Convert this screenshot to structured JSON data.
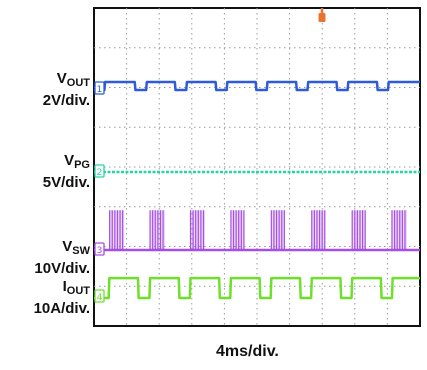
{
  "chart_data": {
    "type": "line",
    "title": "",
    "xlabel": "4ms/div.",
    "x_divisions": 10,
    "y_divisions": 8,
    "grid": true,
    "trigger_marker_color": "#e8742e",
    "series": [
      {
        "id": "vout",
        "label_main": "V",
        "label_sub": "OUT",
        "scale": "2V/div.",
        "marker": "1",
        "color": "#2f5bd9",
        "x": [
          0.0,
          0.32,
          0.34,
          1.25,
          1.27,
          1.6,
          1.62,
          2.48,
          2.5,
          2.83,
          2.85,
          3.73,
          3.75,
          4.07,
          4.09,
          4.96,
          4.98,
          5.3,
          5.32,
          6.2,
          6.22,
          6.55,
          6.57,
          7.44,
          7.46,
          7.78,
          7.8,
          8.68,
          8.7,
          9.02,
          9.04,
          10.0
        ],
        "y": [
          0.0,
          0.0,
          0.2,
          0.2,
          0.0,
          0.0,
          0.2,
          0.2,
          0.0,
          0.0,
          0.2,
          0.2,
          0.0,
          0.0,
          0.2,
          0.2,
          0.0,
          0.0,
          0.2,
          0.2,
          0.0,
          0.0,
          0.2,
          0.2,
          0.0,
          0.0,
          0.2,
          0.2,
          0.0,
          0.0,
          0.2,
          0.2
        ]
      },
      {
        "id": "vpg",
        "label_main": "V",
        "label_sub": "PG",
        "scale": "5V/div.",
        "marker": "2",
        "color": "#27d4a6",
        "x": [
          0,
          10
        ],
        "y": [
          0,
          0
        ]
      },
      {
        "id": "vsw",
        "label_main": "V",
        "label_sub": "SW",
        "scale": "10V/div.",
        "marker": "3",
        "color": "#a64fe3",
        "bursts": [
          [
            0.48,
            0.92
          ],
          [
            1.72,
            2.18
          ],
          [
            2.96,
            3.4
          ],
          [
            4.2,
            4.62
          ],
          [
            5.44,
            5.84
          ],
          [
            6.68,
            7.1
          ],
          [
            7.92,
            8.32
          ],
          [
            9.14,
            9.6
          ]
        ],
        "high": 1.0,
        "low": 0.0
      },
      {
        "id": "iout",
        "label_main": "I",
        "label_sub": "OUT",
        "scale": "10A/div.",
        "marker": "4",
        "color": "#6ee02c",
        "x": [
          0.0,
          0.45,
          0.47,
          1.35,
          1.37,
          1.7,
          1.72,
          2.6,
          2.62,
          2.94,
          2.96,
          3.84,
          3.86,
          4.18,
          4.2,
          5.08,
          5.1,
          5.42,
          5.44,
          6.32,
          6.34,
          6.66,
          6.68,
          7.56,
          7.58,
          7.9,
          7.92,
          8.8,
          8.82,
          9.14,
          9.16,
          10.0
        ],
        "y": [
          0.0,
          0.0,
          0.5,
          0.5,
          0.0,
          0.0,
          0.5,
          0.5,
          0.0,
          0.0,
          0.5,
          0.5,
          0.0,
          0.0,
          0.5,
          0.5,
          0.0,
          0.0,
          0.5,
          0.5,
          0.0,
          0.0,
          0.5,
          0.5,
          0.0,
          0.0,
          0.5,
          0.5,
          0.0,
          0.0,
          0.5,
          0.5
        ]
      }
    ]
  }
}
